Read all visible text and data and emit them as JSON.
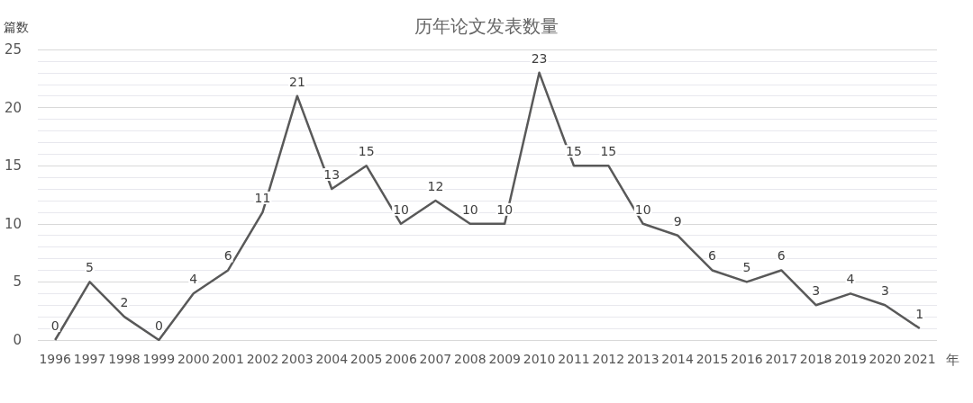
{
  "chart_data": {
    "type": "line",
    "title": "历年论文发表数量",
    "ylabel": "篇数",
    "xlabel": "年",
    "categories": [
      "1996",
      "1997",
      "1998",
      "1999",
      "2000",
      "2001",
      "2002",
      "2003",
      "2004",
      "2005",
      "2006",
      "2007",
      "2008",
      "2009",
      "2010",
      "2011",
      "2012",
      "2013",
      "2014",
      "2015",
      "2016",
      "2017",
      "2018",
      "2019",
      "2020",
      "2021"
    ],
    "series": [
      {
        "color": "#595959",
        "values": [
          0,
          5,
          2,
          0,
          4,
          6,
          11,
          21,
          13,
          15,
          10,
          12,
          10,
          10,
          23,
          15,
          15,
          10,
          9,
          6,
          5,
          6,
          3,
          4,
          3,
          1
        ]
      }
    ],
    "ylim": [
      0,
      25
    ],
    "yticks": [
      0,
      5,
      10,
      15,
      20,
      25
    ],
    "grid": "y",
    "marker": "none",
    "line_style": "solid",
    "data_labels": true
  }
}
